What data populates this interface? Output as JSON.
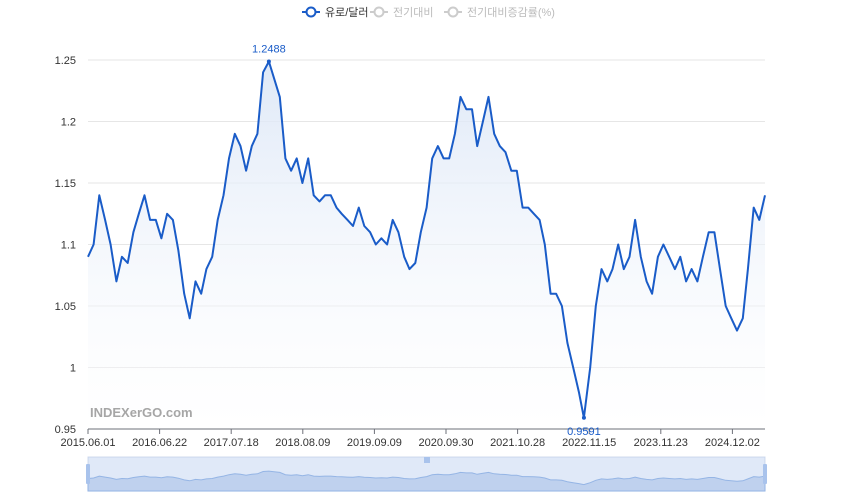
{
  "legend": [
    {
      "label": "유로/달러",
      "active": true
    },
    {
      "label": "전기대비",
      "active": false
    },
    {
      "label": "전기대비증감률(%)",
      "active": false
    }
  ],
  "watermark": "INDEXerGO.com",
  "colors": {
    "line": "#1a5cc8",
    "inactive": "#cccccc",
    "grid": "#e6e6e6",
    "area_top": "#dbe6f6"
  },
  "chart_data": {
    "type": "area",
    "series_name": "유로/달러",
    "ylim": [
      0.95,
      1.25
    ],
    "yticks": [
      "0.95",
      "1",
      "1.05",
      "1.1",
      "1.15",
      "1.2",
      "1.25"
    ],
    "xtick_labels": [
      "2015.06.01",
      "2016.06.22",
      "2017.07.18",
      "2018.08.09",
      "2019.09.09",
      "2020.09.30",
      "2021.10.28",
      "2022.11.15",
      "2023.11.23",
      "2024.12.02"
    ],
    "x_range": [
      "2015-06-01",
      "2025-06-01"
    ],
    "points": [
      [
        "2015-06-01",
        1.09
      ],
      [
        "2015-07-01",
        1.1
      ],
      [
        "2015-08-01",
        1.14
      ],
      [
        "2015-09-01",
        1.12
      ],
      [
        "2015-10-01",
        1.1
      ],
      [
        "2015-11-01",
        1.07
      ],
      [
        "2015-12-01",
        1.09
      ],
      [
        "2016-01-01",
        1.085
      ],
      [
        "2016-02-01",
        1.11
      ],
      [
        "2016-03-01",
        1.125
      ],
      [
        "2016-04-01",
        1.14
      ],
      [
        "2016-05-01",
        1.12
      ],
      [
        "2016-06-01",
        1.12
      ],
      [
        "2016-07-01",
        1.105
      ],
      [
        "2016-08-01",
        1.125
      ],
      [
        "2016-09-01",
        1.12
      ],
      [
        "2016-10-01",
        1.095
      ],
      [
        "2016-11-01",
        1.06
      ],
      [
        "2016-12-01",
        1.04
      ],
      [
        "2017-01-01",
        1.07
      ],
      [
        "2017-02-01",
        1.06
      ],
      [
        "2017-03-01",
        1.08
      ],
      [
        "2017-04-01",
        1.09
      ],
      [
        "2017-05-01",
        1.12
      ],
      [
        "2017-06-01",
        1.14
      ],
      [
        "2017-07-01",
        1.17
      ],
      [
        "2017-08-01",
        1.19
      ],
      [
        "2017-09-01",
        1.18
      ],
      [
        "2017-10-01",
        1.16
      ],
      [
        "2017-11-01",
        1.18
      ],
      [
        "2017-12-01",
        1.19
      ],
      [
        "2018-01-01",
        1.24
      ],
      [
        "2018-02-01",
        1.2488
      ],
      [
        "2018-03-01",
        1.235
      ],
      [
        "2018-04-01",
        1.22
      ],
      [
        "2018-05-01",
        1.17
      ],
      [
        "2018-06-01",
        1.16
      ],
      [
        "2018-07-01",
        1.17
      ],
      [
        "2018-08-01",
        1.15
      ],
      [
        "2018-09-01",
        1.17
      ],
      [
        "2018-10-01",
        1.14
      ],
      [
        "2018-11-01",
        1.135
      ],
      [
        "2018-12-01",
        1.14
      ],
      [
        "2019-01-01",
        1.14
      ],
      [
        "2019-02-01",
        1.13
      ],
      [
        "2019-03-01",
        1.125
      ],
      [
        "2019-04-01",
        1.12
      ],
      [
        "2019-05-01",
        1.115
      ],
      [
        "2019-06-01",
        1.13
      ],
      [
        "2019-07-01",
        1.115
      ],
      [
        "2019-08-01",
        1.11
      ],
      [
        "2019-09-01",
        1.1
      ],
      [
        "2019-10-01",
        1.105
      ],
      [
        "2019-11-01",
        1.1
      ],
      [
        "2019-12-01",
        1.12
      ],
      [
        "2020-01-01",
        1.11
      ],
      [
        "2020-02-01",
        1.09
      ],
      [
        "2020-03-01",
        1.08
      ],
      [
        "2020-04-01",
        1.085
      ],
      [
        "2020-05-01",
        1.11
      ],
      [
        "2020-06-01",
        1.13
      ],
      [
        "2020-07-01",
        1.17
      ],
      [
        "2020-08-01",
        1.18
      ],
      [
        "2020-09-01",
        1.17
      ],
      [
        "2020-10-01",
        1.17
      ],
      [
        "2020-11-01",
        1.19
      ],
      [
        "2020-12-01",
        1.22
      ],
      [
        "2021-01-01",
        1.21
      ],
      [
        "2021-02-01",
        1.21
      ],
      [
        "2021-03-01",
        1.18
      ],
      [
        "2021-04-01",
        1.2
      ],
      [
        "2021-05-01",
        1.22
      ],
      [
        "2021-06-01",
        1.19
      ],
      [
        "2021-07-01",
        1.18
      ],
      [
        "2021-08-01",
        1.175
      ],
      [
        "2021-09-01",
        1.16
      ],
      [
        "2021-10-01",
        1.16
      ],
      [
        "2021-11-01",
        1.13
      ],
      [
        "2021-12-01",
        1.13
      ],
      [
        "2022-01-01",
        1.125
      ],
      [
        "2022-02-01",
        1.12
      ],
      [
        "2022-03-01",
        1.1
      ],
      [
        "2022-04-01",
        1.06
      ],
      [
        "2022-05-01",
        1.06
      ],
      [
        "2022-06-01",
        1.05
      ],
      [
        "2022-07-01",
        1.02
      ],
      [
        "2022-08-01",
        1.0
      ],
      [
        "2022-09-01",
        0.98
      ],
      [
        "2022-09-28",
        0.9591
      ],
      [
        "2022-10-15",
        0.98
      ],
      [
        "2022-11-01",
        1.0
      ],
      [
        "2022-12-01",
        1.05
      ],
      [
        "2023-01-01",
        1.08
      ],
      [
        "2023-02-01",
        1.07
      ],
      [
        "2023-03-01",
        1.08
      ],
      [
        "2023-04-01",
        1.1
      ],
      [
        "2023-05-01",
        1.08
      ],
      [
        "2023-06-01",
        1.09
      ],
      [
        "2023-07-01",
        1.12
      ],
      [
        "2023-08-01",
        1.09
      ],
      [
        "2023-09-01",
        1.07
      ],
      [
        "2023-10-01",
        1.06
      ],
      [
        "2023-11-01",
        1.09
      ],
      [
        "2023-12-01",
        1.1
      ],
      [
        "2024-01-01",
        1.09
      ],
      [
        "2024-02-01",
        1.08
      ],
      [
        "2024-03-01",
        1.09
      ],
      [
        "2024-04-01",
        1.07
      ],
      [
        "2024-05-01",
        1.08
      ],
      [
        "2024-06-01",
        1.07
      ],
      [
        "2024-07-01",
        1.09
      ],
      [
        "2024-08-01",
        1.11
      ],
      [
        "2024-09-01",
        1.11
      ],
      [
        "2024-10-01",
        1.08
      ],
      [
        "2024-11-01",
        1.05
      ],
      [
        "2024-12-01",
        1.04
      ],
      [
        "2025-01-01",
        1.03
      ],
      [
        "2025-02-01",
        1.04
      ],
      [
        "2025-03-01",
        1.08
      ],
      [
        "2025-04-01",
        1.13
      ],
      [
        "2025-05-01",
        1.12
      ],
      [
        "2025-06-01",
        1.14
      ]
    ],
    "annotations": [
      {
        "label": "1.2488",
        "date": "2018-02-01",
        "value": 1.2488,
        "position": "above"
      },
      {
        "label": "0.9591",
        "date": "2022-09-28",
        "value": 0.9591,
        "position": "below"
      }
    ],
    "grid": true,
    "legend_position": "top-center",
    "has_zoom_slider": true
  }
}
